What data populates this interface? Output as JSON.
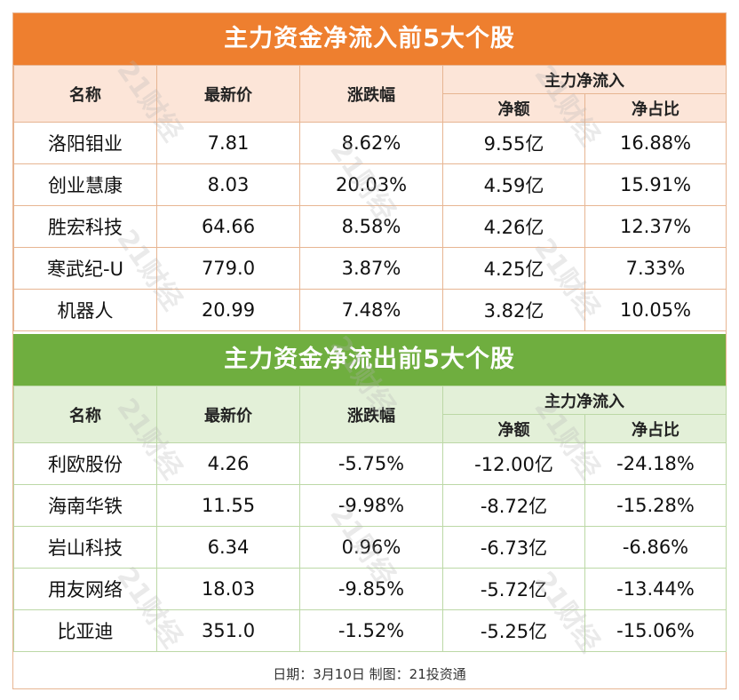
{
  "colors": {
    "inflow_title_bg": "#ee7f2f",
    "inflow_header_bg": "#fce5d8",
    "inflow_border": "#e7b592",
    "outflow_title_bg": "#6fae3f",
    "outflow_header_bg": "#e3f0d8",
    "outflow_border": "#bcd8a6"
  },
  "inflow": {
    "title": "主力资金净流入前5大个股",
    "headers": {
      "name": "名称",
      "price": "最新价",
      "change": "涨跌幅",
      "group": "主力净流入",
      "net": "净额",
      "ratio": "净占比"
    },
    "rows": [
      {
        "name": "洛阳钼业",
        "price": "7.81",
        "change": "8.62%",
        "net": "9.55亿",
        "ratio": "16.88%"
      },
      {
        "name": "创业慧康",
        "price": "8.03",
        "change": "20.03%",
        "net": "4.59亿",
        "ratio": "15.91%"
      },
      {
        "name": "胜宏科技",
        "price": "64.66",
        "change": "8.58%",
        "net": "4.26亿",
        "ratio": "12.37%"
      },
      {
        "name": "寒武纪-U",
        "price": "779.0",
        "change": "3.87%",
        "net": "4.25亿",
        "ratio": "7.33%"
      },
      {
        "name": "机器人",
        "price": "20.99",
        "change": "7.48%",
        "net": "3.82亿",
        "ratio": "10.05%"
      }
    ]
  },
  "outflow": {
    "title": "主力资金净流出前5大个股",
    "headers": {
      "name": "名称",
      "price": "最新价",
      "change": "涨跌幅",
      "group": "主力净流入",
      "net": "净额",
      "ratio": "净占比"
    },
    "rows": [
      {
        "name": "利欧股份",
        "price": "4.26",
        "change": "-5.75%",
        "net": "-12.00亿",
        "ratio": "-24.18%"
      },
      {
        "name": "海南华铁",
        "price": "11.55",
        "change": "-9.98%",
        "net": "-8.72亿",
        "ratio": "-15.28%"
      },
      {
        "name": "岩山科技",
        "price": "6.34",
        "change": "0.96%",
        "net": "-6.73亿",
        "ratio": "-6.86%"
      },
      {
        "name": "用友网络",
        "price": "18.03",
        "change": "-9.85%",
        "net": "-5.72亿",
        "ratio": "-13.44%"
      },
      {
        "name": "比亚迪",
        "price": "351.0",
        "change": "-1.52%",
        "net": "-5.25亿",
        "ratio": "-15.06%"
      }
    ]
  },
  "footer": "日期：3月10日 制图：21投资通",
  "watermark": "21财经"
}
